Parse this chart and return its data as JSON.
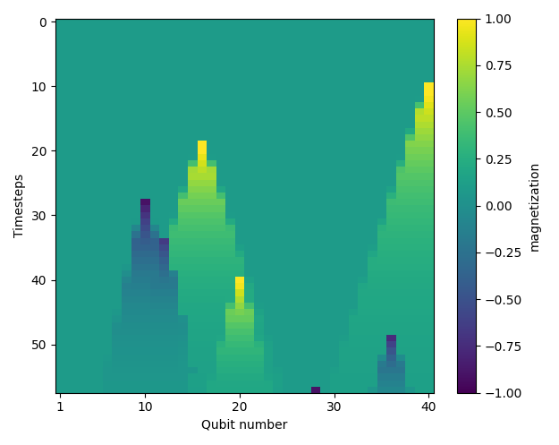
{
  "n_qubits": 40,
  "n_timesteps": 58,
  "xlabel": "Qubit number",
  "ylabel": "Timesteps",
  "colorbar_label": "magnetization",
  "xticks": [
    1,
    10,
    20,
    30,
    40
  ],
  "yticks": [
    0,
    10,
    20,
    30,
    40,
    50
  ],
  "xlim": [
    0.5,
    40.5
  ],
  "ylim": [
    57.5,
    -0.5
  ],
  "vmin": -1.0,
  "vmax": 1.0,
  "cmap": "viridis",
  "figsize": [
    6.25,
    4.97
  ],
  "dpi": 100,
  "background_val": 0.1,
  "spikes": [
    {
      "qubit": 10,
      "time_peak": 28,
      "amplitude": -1.0,
      "qubit_spread_rate": 0.15,
      "time_decay": 18,
      "pos_tail": true
    },
    {
      "qubit": 12,
      "time_peak": 34,
      "amplitude": -0.75,
      "qubit_spread_rate": 0.15,
      "time_decay": 14,
      "pos_tail": true
    },
    {
      "qubit": 16,
      "time_peak": 19,
      "amplitude": 1.0,
      "qubit_spread_rate": 0.22,
      "time_decay": 22,
      "pos_tail": true
    },
    {
      "qubit": 20,
      "time_peak": 40,
      "amplitude": 1.0,
      "qubit_spread_rate": 0.18,
      "time_decay": 14,
      "pos_tail": true
    },
    {
      "qubit": 28,
      "time_peak": 57,
      "amplitude": -1.0,
      "qubit_spread_rate": 0.0,
      "time_decay": 1,
      "pos_tail": false
    },
    {
      "qubit": 36,
      "time_peak": 49,
      "amplitude": -0.85,
      "qubit_spread_rate": 0.2,
      "time_decay": 10,
      "pos_tail": true
    },
    {
      "qubit": 40,
      "time_peak": 10,
      "amplitude": 1.0,
      "qubit_spread_rate": 0.22,
      "time_decay": 28,
      "pos_tail": true
    }
  ]
}
